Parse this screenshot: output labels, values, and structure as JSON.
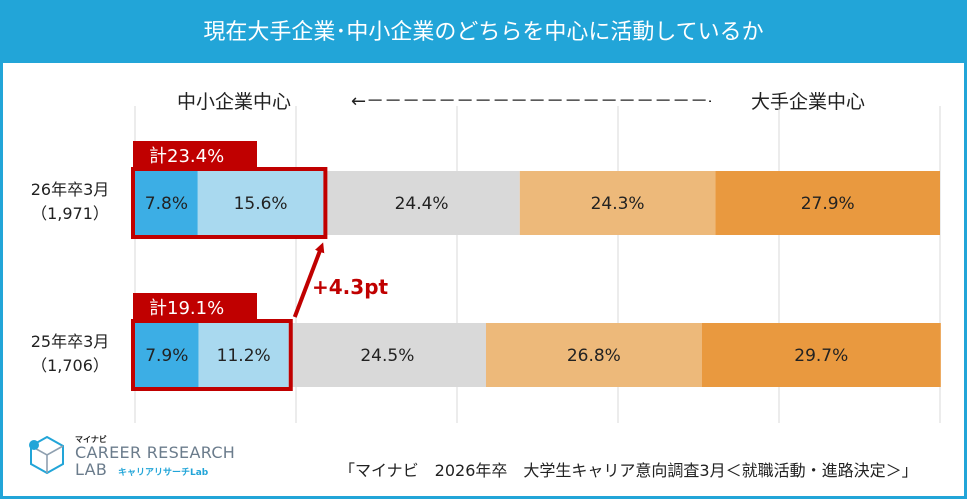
{
  "title": "現在大手企業･中小企業のどちらを中心に活動しているか",
  "labels": {
    "left": "中小企業中心",
    "arrow": "←－－－－－－－－－－－－－－－－－－－→",
    "right": "大手企業中心"
  },
  "delta_label": "+4.3pt",
  "source": "「マイナビ　2026年卒　大学生キャリア意向調査3月＜就職活動・進路決定＞」",
  "logo": {
    "top": "マイナビ",
    "main_line1": "CAREER RESEARCH",
    "main_line2": "LAB",
    "sub": "キャリアリサーチLab"
  },
  "colors": {
    "header": "#22a5d8",
    "segments": [
      "#3caee5",
      "#a9d9ef",
      "#d9d9d9",
      "#edb97a",
      "#e9993f"
    ],
    "highlight": "#c00000"
  },
  "chart_data": {
    "type": "bar",
    "orientation": "horizontal",
    "stacked": true,
    "normalized": true,
    "categories": [
      {
        "line1": "26年卒3月",
        "line2": "（1,971）"
      },
      {
        "line1": "25年卒3月",
        "line2": "（1,706）"
      }
    ],
    "series": [
      {
        "values": [
          7.8,
          7.9
        ],
        "color": "#3caee5"
      },
      {
        "values": [
          15.6,
          11.2
        ],
        "color": "#a9d9ef"
      },
      {
        "values": [
          24.4,
          24.5
        ],
        "color": "#d9d9d9"
      },
      {
        "values": [
          24.3,
          26.8
        ],
        "color": "#edb97a"
      },
      {
        "values": [
          27.9,
          29.7
        ],
        "color": "#e9993f"
      }
    ],
    "totals": [
      "計23.4%",
      "計19.1%"
    ],
    "xlim": [
      0,
      100
    ],
    "grid": true
  }
}
